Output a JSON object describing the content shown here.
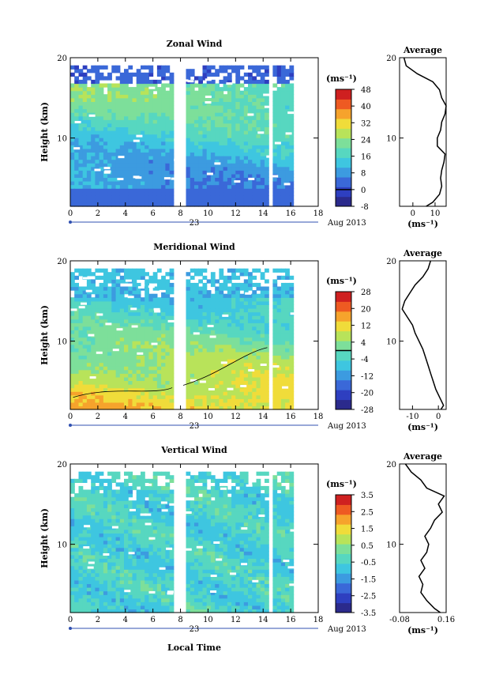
{
  "figure": {
    "date_label": "Aug 2013",
    "day_label": "23",
    "xlabel": "Local Time",
    "height_label": "Height (km)",
    "unit_label": "(ms⁻¹)",
    "avg_title": "Average"
  },
  "chart_data": [
    {
      "type": "heatmap",
      "title": "Zonal Wind",
      "xlabel": "Local Time",
      "ylabel": "Height (km)",
      "xlim": [
        0,
        18
      ],
      "ylim": [
        1.5,
        20
      ],
      "xticks": [
        0,
        2,
        4,
        6,
        8,
        10,
        12,
        14,
        16,
        18
      ],
      "yticks": [
        10,
        20
      ],
      "colorbar": {
        "min": -8,
        "max": 48,
        "ticks": [
          48,
          40,
          32,
          24,
          16,
          8,
          0,
          -8
        ],
        "tick_labels": [
          "48",
          "40",
          "32",
          "24",
          "16",
          "8",
          "0",
          "-8"
        ],
        "zero_contour": 0
      },
      "profile": {
        "title": "Average",
        "xlim": [
          -6,
          15
        ],
        "xticks": [
          0,
          10
        ],
        "heights": [
          1.5,
          2,
          3,
          4,
          5,
          6,
          7,
          8,
          9,
          10,
          11,
          12,
          13,
          14,
          15,
          16,
          17,
          18,
          19,
          20
        ],
        "values": [
          6,
          9,
          12,
          13,
          12.5,
          13,
          14,
          14.5,
          11,
          11,
          12.5,
          13,
          14.5,
          15,
          13,
          12,
          9,
          2,
          -3,
          -4
        ]
      }
    },
    {
      "type": "heatmap",
      "title": "Meridional Wind",
      "xlabel": "Local Time",
      "ylabel": "Height (km)",
      "xlim": [
        0,
        18
      ],
      "ylim": [
        1.5,
        20
      ],
      "xticks": [
        0,
        2,
        4,
        6,
        8,
        10,
        12,
        14,
        16,
        18
      ],
      "yticks": [
        10,
        20
      ],
      "colorbar": {
        "min": -28,
        "max": 28,
        "ticks": [
          28,
          20,
          12,
          4,
          -4,
          -12,
          -20,
          -28
        ],
        "tick_labels": [
          "28",
          "20",
          "12",
          "4",
          "-4",
          "-12",
          "-20",
          "-28"
        ],
        "zero_contour": 0
      },
      "profile": {
        "title": "Average",
        "xlim": [
          -15,
          3
        ],
        "xticks": [
          -10,
          0
        ],
        "heights": [
          1.5,
          2,
          3,
          4,
          5,
          6,
          7,
          8,
          9,
          10,
          11,
          12,
          13,
          14,
          15,
          16,
          17,
          18,
          19,
          20
        ],
        "values": [
          1,
          2,
          0.5,
          -1,
          -2,
          -3,
          -4,
          -5,
          -6,
          -7.5,
          -9,
          -10,
          -12,
          -14,
          -13,
          -11,
          -9,
          -6,
          -4,
          -3
        ]
      }
    },
    {
      "type": "heatmap",
      "title": "Vertical Wind",
      "xlabel": "Local Time",
      "ylabel": "Height (km)",
      "xlim": [
        0,
        18
      ],
      "ylim": [
        1.5,
        20
      ],
      "xticks": [
        0,
        2,
        4,
        6,
        8,
        10,
        12,
        14,
        16,
        18
      ],
      "yticks": [
        10,
        20
      ],
      "colorbar": {
        "min": -3.5,
        "max": 3.5,
        "ticks": [
          3.5,
          2.5,
          1.5,
          0.5,
          -0.5,
          -1.5,
          -2.5,
          -3.5
        ],
        "tick_labels": [
          "3.5",
          "2.5",
          "1.5",
          "0.5",
          "-0.5",
          "-1.5",
          "-2.5",
          "-3.5"
        ]
      },
      "profile": {
        "title": "Average",
        "xlim": [
          -0.08,
          0.16
        ],
        "xticks": [
          -0.08,
          0.16
        ],
        "xtick_labels": [
          "-0.08",
          "0.16"
        ],
        "heights": [
          1.5,
          2,
          3,
          4,
          5,
          6,
          7,
          8,
          9,
          10,
          11,
          12,
          13,
          14,
          15,
          16,
          17,
          18,
          19,
          20
        ],
        "values": [
          0.13,
          0.1,
          0.06,
          0.03,
          0.04,
          0.02,
          0.05,
          0.03,
          0.06,
          0.07,
          0.05,
          0.08,
          0.1,
          0.14,
          0.12,
          0.15,
          0.06,
          0.03,
          -0.02,
          -0.05
        ]
      }
    }
  ]
}
